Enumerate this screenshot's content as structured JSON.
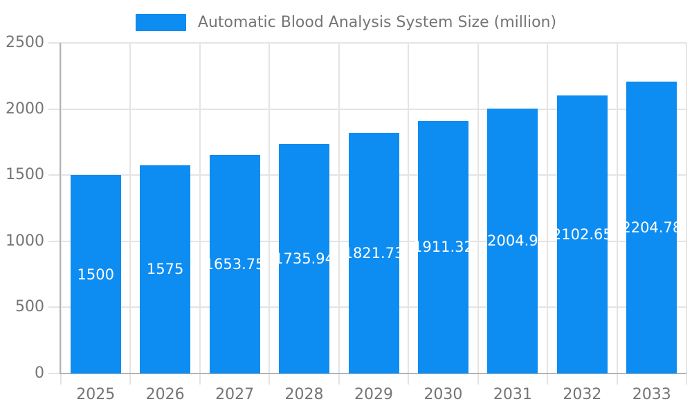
{
  "legend": {
    "label": "Automatic Blood Analysis System Size (million)"
  },
  "chart_data": {
    "type": "bar",
    "title": "Automatic Blood Analysis System Size (million)",
    "categories": [
      "2025",
      "2026",
      "2027",
      "2028",
      "2029",
      "2030",
      "2031",
      "2032",
      "2033"
    ],
    "values": [
      1500,
      1575,
      1653.75,
      1735.94,
      1821.73,
      1911.32,
      2004.9,
      2102.65,
      2204.78
    ],
    "bar_labels": [
      "1500",
      "1575",
      "1653.75",
      "1735.94",
      "1821.73",
      "1911.32",
      "2004.9",
      "2102.65",
      "2204.78"
    ],
    "xlabel": "",
    "ylabel": "",
    "ylim": [
      0,
      2500
    ],
    "yticks": [
      0,
      500,
      1000,
      1500,
      2000,
      2500
    ],
    "grid": true,
    "legend_position": "top-center",
    "bar_color": "#0d8cf2",
    "value_label_color": "#ffffff"
  },
  "colors": {
    "bar": "#0d8cf2",
    "text": "#757575",
    "gridline": "#e4e4e4",
    "axis": "#b3b3b3",
    "bar_label": "#ffffff",
    "background": "#ffffff"
  }
}
